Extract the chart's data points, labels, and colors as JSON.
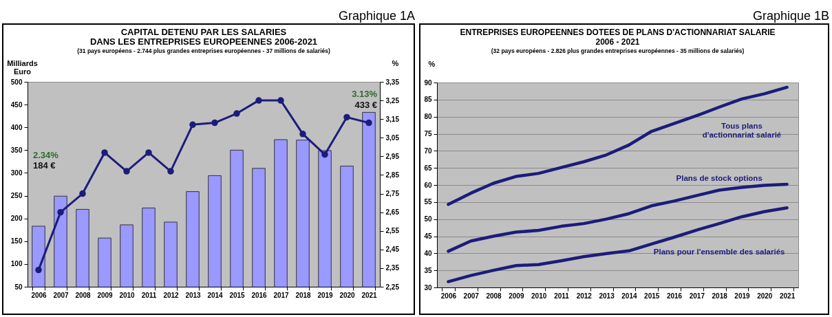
{
  "chart_data": [
    {
      "type": "bar",
      "title": "CAPITAL DETENU PAR LES SALARIES\nDANS LES ENTREPRISES EUROPEENNES 2006-2021",
      "subtitle": "(31 pays européens - 2.744 plus grandes entreprises européennes - 37 millions de salariés)",
      "ylabel": "Milliards Euro",
      "y2label": "%",
      "categories": [
        "2006",
        "2007",
        "2008",
        "2009",
        "2010",
        "2011",
        "2012",
        "2013",
        "2014",
        "2015",
        "2016",
        "2017",
        "2018",
        "2019",
        "2020",
        "2021"
      ],
      "series": [
        {
          "color": "#9999ff",
          "values": [
            183,
            249,
            220,
            157,
            186,
            223,
            192,
            259,
            294,
            350,
            310,
            373,
            372,
            349,
            315,
            433
          ]
        },
        {
          "type": "line",
          "axis": "y2",
          "color": "#1c1c7c",
          "marker": "circle",
          "values": [
            2.34,
            2.65,
            2.75,
            2.97,
            2.87,
            2.97,
            2.87,
            3.12,
            3.13,
            3.18,
            3.25,
            3.25,
            3.07,
            2.96,
            3.16,
            3.13
          ]
        }
      ],
      "ylim": [
        50,
        500
      ],
      "yticks": [
        50,
        100,
        150,
        200,
        250,
        300,
        350,
        400,
        450,
        500
      ],
      "y2lim": [
        2.25,
        3.35
      ],
      "y2ticks": [
        {
          "value": 2.25,
          "label": "2,25"
        },
        {
          "value": 2.35,
          "label": "2,35"
        },
        {
          "value": 2.45,
          "label": "2,45"
        },
        {
          "value": 2.55,
          "label": "2,55"
        },
        {
          "value": 2.65,
          "label": "2,65"
        },
        {
          "value": 2.75,
          "label": "2,75"
        },
        {
          "value": 2.85,
          "label": "2,85"
        },
        {
          "value": 2.95,
          "label": "2,95"
        },
        {
          "value": 3.05,
          "label": "3,05"
        },
        {
          "value": 3.15,
          "label": "3,15"
        },
        {
          "value": 3.25,
          "label": "3,25"
        },
        {
          "value": 3.35,
          "label": "3,35"
        }
      ],
      "annotations": [
        "Graphique 1A",
        "2.34%",
        "184 €",
        "3.13%",
        "433 €"
      ],
      "grid": false
    },
    {
      "type": "line",
      "title": "ENTREPRISES EUROPEENNES DOTEES DE PLANS D'ACTIONNARIAT SALARIE\n2006 - 2021",
      "subtitle": "(32 pays européens - 2.826 plus grandes entreprises européennes - 35 millions de salariés)",
      "ylabel": "%",
      "categories": [
        "2006",
        "2007",
        "2008",
        "2009",
        "2010",
        "2011",
        "2012",
        "2013",
        "2014",
        "2015",
        "2016",
        "2017",
        "2018",
        "2019",
        "2020",
        "2021"
      ],
      "series": [
        {
          "name": "Tous plans d'actionnariat salarié",
          "color": "#1c1c7c",
          "values": [
            54.3,
            57.6,
            60.5,
            62.5,
            63.4,
            65.1,
            66.8,
            68.8,
            71.7,
            75.7,
            78.0,
            80.3,
            82.8,
            85.2,
            86.7,
            88.6
          ]
        },
        {
          "name": "Plans de stock options",
          "color": "#1c1c7c",
          "values": [
            40.6,
            43.6,
            45.0,
            46.2,
            46.7,
            47.9,
            48.7,
            50.0,
            51.6,
            53.9,
            55.3,
            56.9,
            58.5,
            59.3,
            59.9,
            60.2
          ]
        },
        {
          "name": "Plans pour l'ensemble des salariés",
          "color": "#1c1c7c",
          "values": [
            31.7,
            33.5,
            35.0,
            36.4,
            36.7,
            37.8,
            39.0,
            39.9,
            40.7,
            42.7,
            44.7,
            46.8,
            48.7,
            50.7,
            52.2,
            53.3
          ]
        }
      ],
      "ylim": [
        30,
        90
      ],
      "yticks": [
        30,
        35,
        40,
        45,
        50,
        55,
        60,
        65,
        70,
        75,
        80,
        85,
        90
      ],
      "annotations": [
        "Graphique 1B"
      ],
      "grid": "y",
      "line_style": "solid"
    }
  ]
}
